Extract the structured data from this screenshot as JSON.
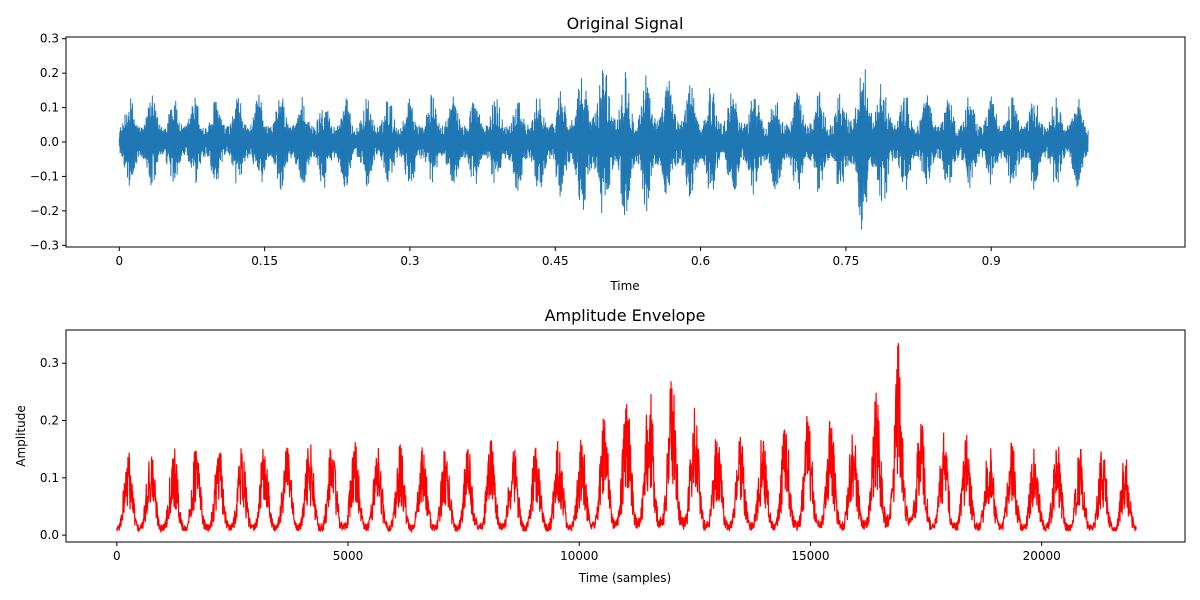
{
  "chart_data": [
    {
      "type": "line",
      "title": "Original Signal",
      "xlabel": "Time",
      "ylabel": "",
      "xlim": [
        -0.055,
        1.1
      ],
      "ylim": [
        -0.305,
        0.305
      ],
      "x_ticks": [
        0,
        0.15,
        0.3,
        0.45,
        0.6,
        0.75,
        0.9
      ],
      "x_tick_labels": [
        "0",
        "0.15",
        "0.3",
        "0.45",
        "0.6",
        "0.75",
        "0.9"
      ],
      "y_ticks": [
        -0.3,
        -0.2,
        -0.1,
        0.0,
        0.1,
        0.2,
        0.3
      ],
      "y_tick_labels": [
        "−0.3",
        "−0.2",
        "−0.1",
        "0.0",
        "0.1",
        "0.2",
        "0.3"
      ],
      "grid": false,
      "color": "#1f77b4",
      "series": [
        {
          "x": [
            0,
            0.05,
            0.1,
            0.15,
            0.2,
            0.25,
            0.3,
            0.35,
            0.4,
            0.45,
            0.5,
            0.52,
            0.54,
            0.56,
            0.6,
            0.65,
            0.7,
            0.75,
            0.77,
            0.8,
            0.85,
            0.9,
            0.95,
            1.0
          ],
          "values": [
            0.13,
            0.14,
            0.13,
            0.14,
            0.14,
            0.13,
            0.14,
            0.14,
            0.14,
            0.15,
            0.25,
            0.22,
            0.21,
            0.19,
            0.17,
            0.16,
            0.15,
            0.16,
            0.28,
            0.15,
            0.14,
            0.14,
            0.14,
            0.13
          ]
        }
      ]
    },
    {
      "type": "line",
      "title": "Amplitude Envelope",
      "xlabel": "Time (samples)",
      "ylabel": "Amplitude",
      "xlim": [
        -1100,
        23100
      ],
      "ylim": [
        -0.012,
        0.358
      ],
      "x_ticks": [
        0,
        5000,
        10000,
        15000,
        20000
      ],
      "x_tick_labels": [
        "0",
        "5000",
        "10000",
        "15000",
        "20000"
      ],
      "y_ticks": [
        0.0,
        0.1,
        0.2,
        0.3
      ],
      "y_tick_labels": [
        "0.0",
        "0.1",
        "0.2",
        "0.3"
      ],
      "grid": false,
      "color": "#ff0000",
      "series": [
        {
          "x": [
            0,
            1000,
            2000,
            3000,
            4000,
            5000,
            6000,
            7000,
            8000,
            9000,
            10000,
            11000,
            11500,
            12000,
            13000,
            14000,
            15000,
            16000,
            16900,
            17500,
            18000,
            19000,
            20000,
            21000,
            22000
          ],
          "values": [
            0.15,
            0.16,
            0.16,
            0.16,
            0.17,
            0.17,
            0.16,
            0.16,
            0.17,
            0.17,
            0.17,
            0.25,
            0.27,
            0.28,
            0.19,
            0.18,
            0.22,
            0.19,
            0.34,
            0.18,
            0.18,
            0.17,
            0.17,
            0.16,
            0.14
          ]
        }
      ]
    }
  ]
}
